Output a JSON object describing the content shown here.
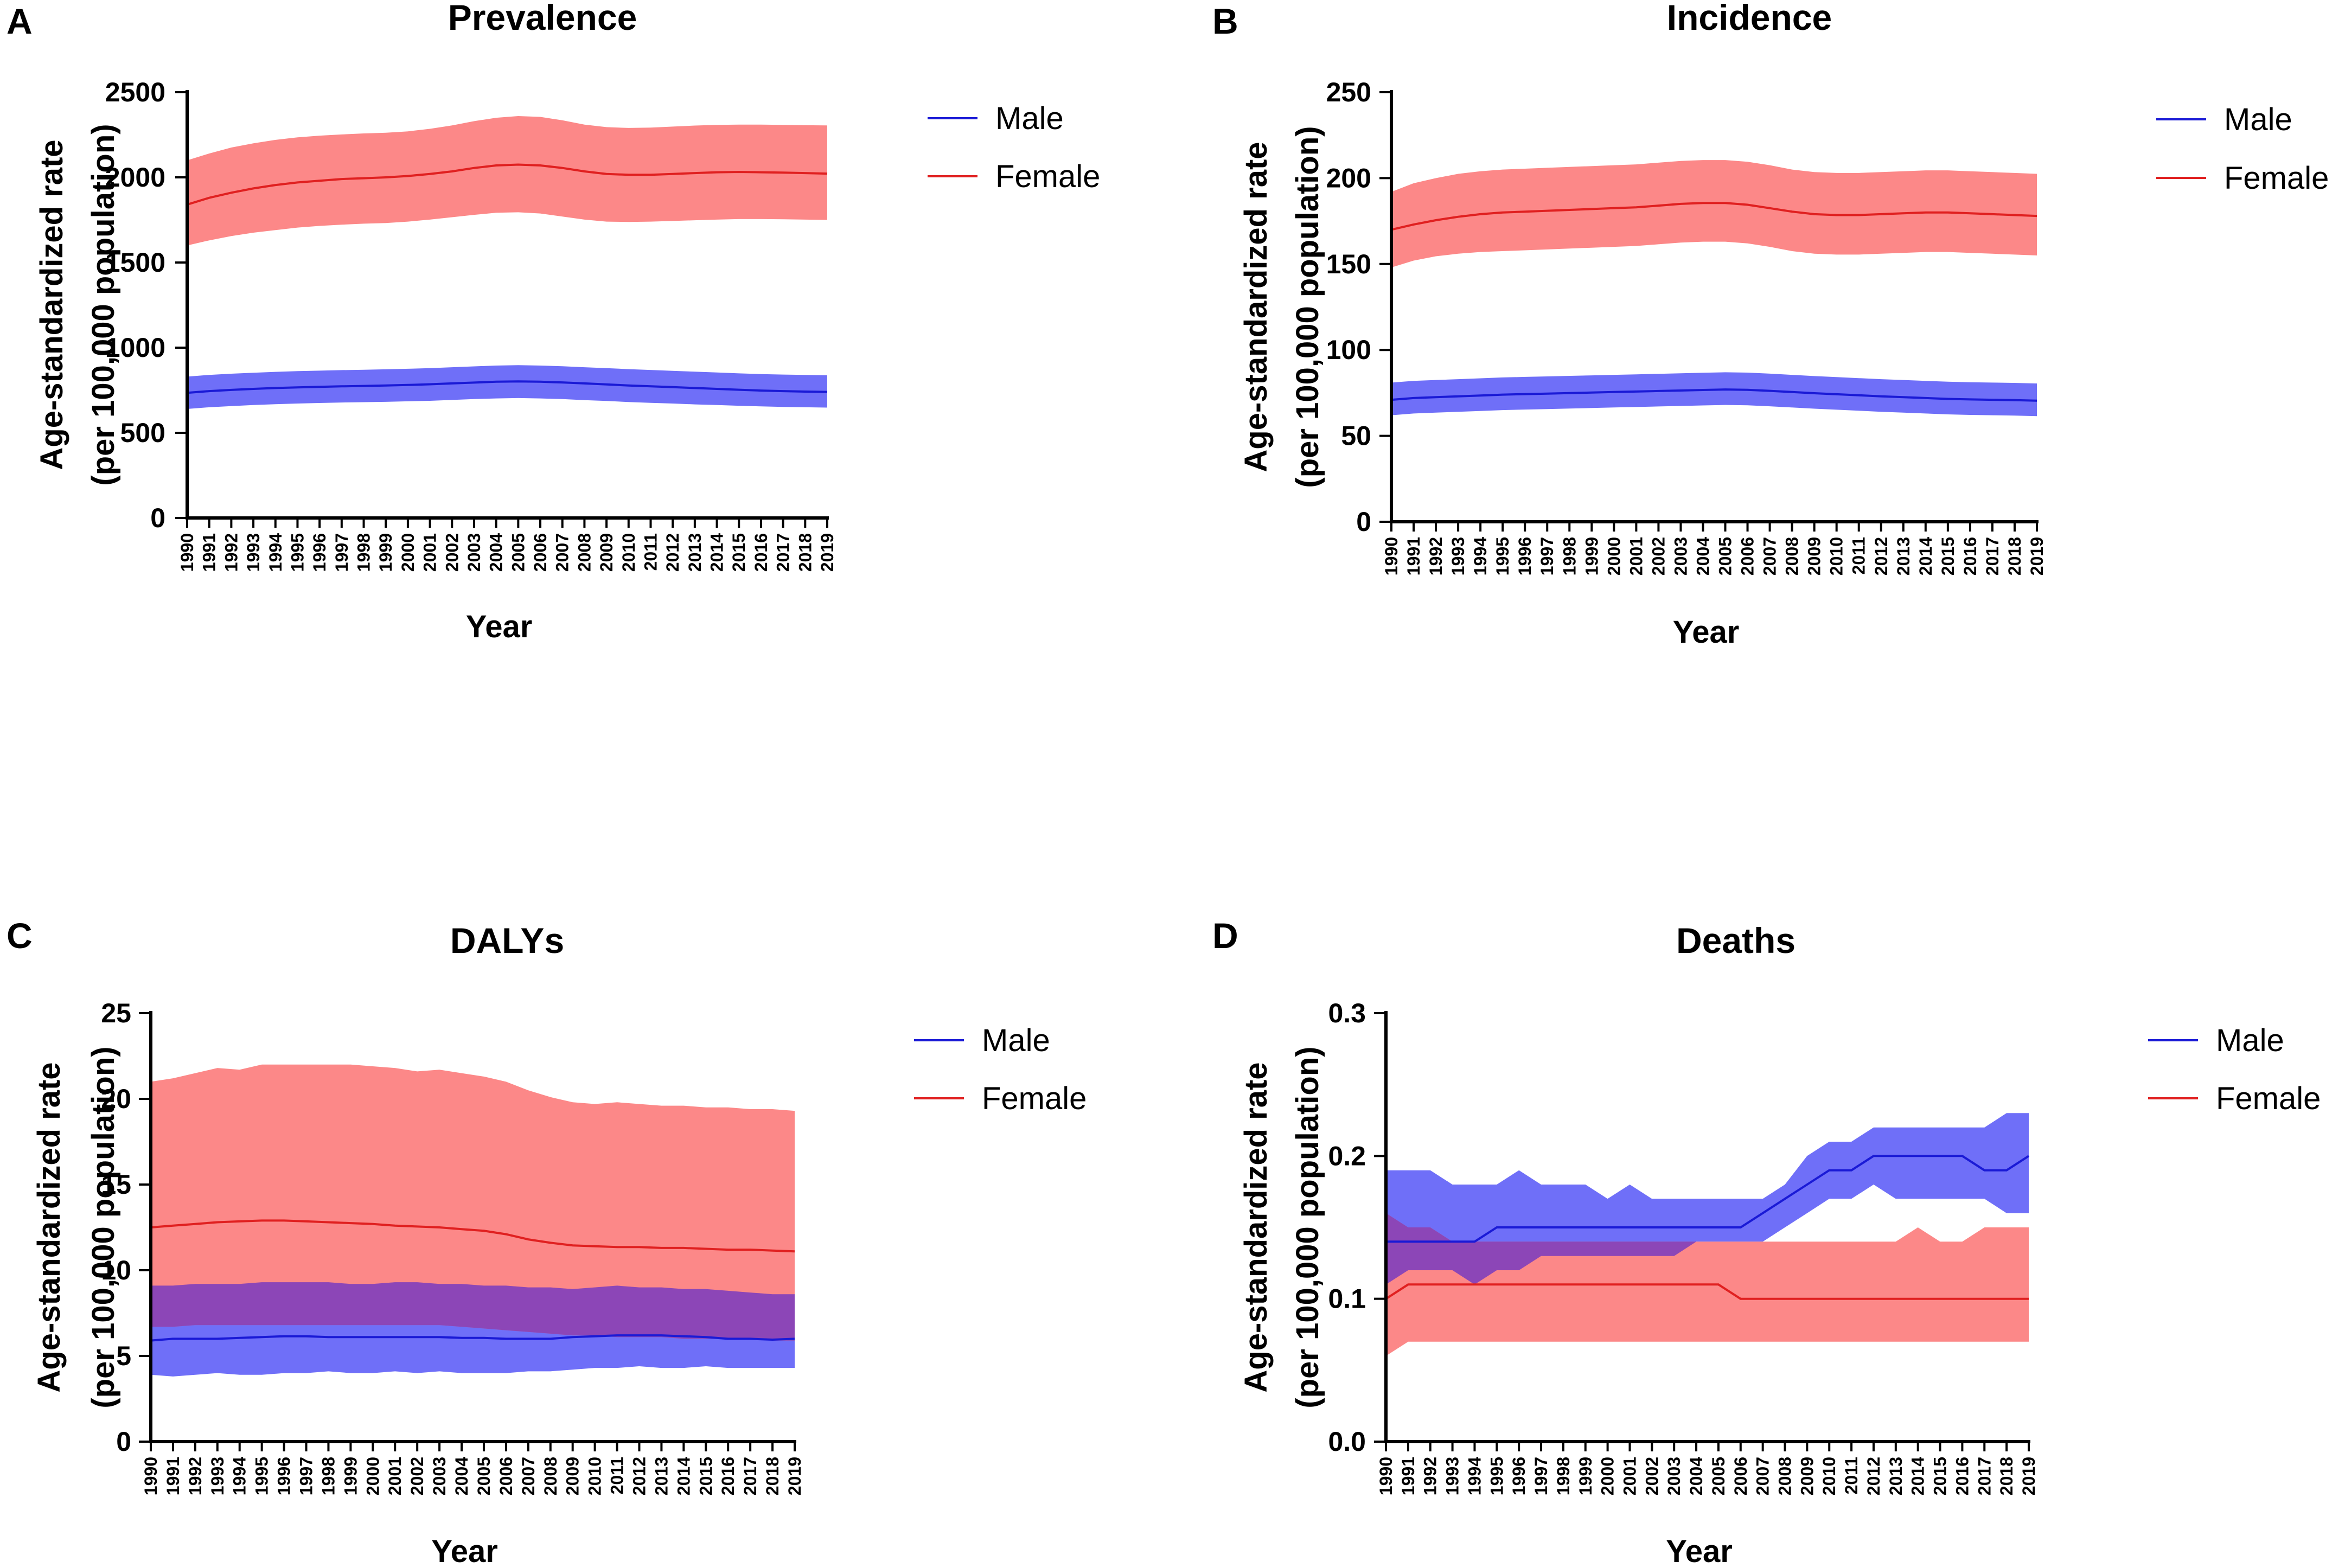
{
  "colors": {
    "male_line": "#1a1ad6",
    "male_band": "#6f6ff8",
    "female_line": "#e02020",
    "female_band": "#fb6e6e",
    "overlap_band": "#7c3fbf"
  },
  "chart_data": [
    {
      "letter": "A",
      "type": "area",
      "title": "Prevalence",
      "xlabel": "Year",
      "ylabel": [
        "Age-standardized rate",
        "(per 100,000 population)"
      ],
      "ylim": [
        0,
        2500
      ],
      "yticks": [
        0,
        500,
        1000,
        1500,
        2000,
        2500
      ],
      "ytick_labels": [
        "0",
        "500",
        "1000",
        "1500",
        "2000",
        "2500"
      ],
      "legend": [
        "Male",
        "Female"
      ],
      "x": [
        1990,
        1991,
        1992,
        1993,
        1994,
        1995,
        1996,
        1997,
        1998,
        1999,
        2000,
        2001,
        2002,
        2003,
        2004,
        2005,
        2006,
        2007,
        2008,
        2009,
        2010,
        2011,
        2012,
        2013,
        2014,
        2015,
        2016,
        2017,
        2018,
        2019
      ],
      "series": [
        {
          "name": "Male",
          "values": [
            735,
            745,
            752,
            758,
            763,
            767,
            770,
            773,
            775,
            778,
            781,
            785,
            790,
            795,
            800,
            802,
            800,
            796,
            790,
            784,
            778,
            773,
            768,
            763,
            758,
            753,
            748,
            745,
            742,
            740
          ],
          "lower": [
            640,
            650,
            657,
            663,
            668,
            672,
            675,
            678,
            680,
            682,
            685,
            688,
            693,
            698,
            702,
            704,
            702,
            698,
            692,
            687,
            681,
            676,
            672,
            667,
            663,
            659,
            655,
            652,
            650,
            648
          ],
          "upper": [
            830,
            840,
            847,
            853,
            858,
            862,
            865,
            868,
            870,
            873,
            876,
            880,
            885,
            890,
            895,
            897,
            895,
            891,
            885,
            880,
            874,
            869,
            864,
            859,
            854,
            849,
            845,
            842,
            840,
            838
          ]
        },
        {
          "name": "Female",
          "values": [
            1840,
            1880,
            1910,
            1935,
            1955,
            1970,
            1980,
            1990,
            1995,
            2000,
            2008,
            2020,
            2035,
            2055,
            2070,
            2075,
            2070,
            2055,
            2035,
            2020,
            2015,
            2015,
            2020,
            2025,
            2030,
            2032,
            2030,
            2028,
            2025,
            2022
          ],
          "lower": [
            1600,
            1630,
            1655,
            1675,
            1690,
            1705,
            1715,
            1722,
            1728,
            1732,
            1740,
            1752,
            1766,
            1780,
            1792,
            1795,
            1788,
            1770,
            1752,
            1740,
            1738,
            1740,
            1744,
            1748,
            1752,
            1755,
            1755,
            1754,
            1752,
            1750
          ],
          "upper": [
            2100,
            2140,
            2175,
            2200,
            2220,
            2235,
            2245,
            2252,
            2258,
            2262,
            2270,
            2285,
            2305,
            2330,
            2350,
            2360,
            2355,
            2335,
            2310,
            2295,
            2290,
            2292,
            2298,
            2304,
            2308,
            2310,
            2310,
            2308,
            2306,
            2305
          ]
        }
      ]
    },
    {
      "letter": "B",
      "type": "area",
      "title": "Incidence",
      "xlabel": "Year",
      "ylabel": [
        "Age-standardized rate",
        "(per 100,000 population)"
      ],
      "ylim": [
        0,
        250
      ],
      "yticks": [
        0,
        50,
        100,
        150,
        200,
        250
      ],
      "ytick_labels": [
        "0",
        "50",
        "100",
        "150",
        "200",
        "250"
      ],
      "legend": [
        "Male",
        "Female"
      ],
      "x": [
        1990,
        1991,
        1992,
        1993,
        1994,
        1995,
        1996,
        1997,
        1998,
        1999,
        2000,
        2001,
        2002,
        2003,
        2004,
        2005,
        2006,
        2007,
        2008,
        2009,
        2010,
        2011,
        2012,
        2013,
        2014,
        2015,
        2016,
        2017,
        2018,
        2019
      ],
      "series": [
        {
          "name": "Male",
          "values": [
            71,
            72,
            72.5,
            73,
            73.5,
            74,
            74.3,
            74.6,
            74.9,
            75.2,
            75.5,
            75.8,
            76.1,
            76.4,
            76.7,
            77,
            76.8,
            76.2,
            75.5,
            74.8,
            74.2,
            73.6,
            73,
            72.5,
            72,
            71.5,
            71.2,
            71,
            70.8,
            70.5
          ],
          "lower": [
            62,
            63,
            63.5,
            64,
            64.5,
            65,
            65.3,
            65.6,
            65.9,
            66.2,
            66.5,
            66.8,
            67.1,
            67.4,
            67.7,
            68,
            67.8,
            67.2,
            66.5,
            65.8,
            65.2,
            64.6,
            64,
            63.5,
            63,
            62.5,
            62.2,
            62,
            61.8,
            61.5
          ],
          "upper": [
            81,
            82,
            82.5,
            83,
            83.5,
            84,
            84.3,
            84.6,
            84.9,
            85.2,
            85.5,
            85.8,
            86.1,
            86.4,
            86.7,
            87,
            86.8,
            86.2,
            85.5,
            84.8,
            84.2,
            83.6,
            83,
            82.5,
            82,
            81.5,
            81.2,
            81,
            80.8,
            80.5
          ]
        },
        {
          "name": "Female",
          "values": [
            170,
            173,
            175.5,
            177.5,
            179,
            180,
            180.5,
            181,
            181.5,
            182,
            182.5,
            183,
            184,
            185,
            185.5,
            185.5,
            184.5,
            182.5,
            180.5,
            179,
            178.5,
            178.5,
            179,
            179.5,
            180,
            180,
            179.5,
            179,
            178.5,
            178
          ],
          "lower": [
            148,
            152,
            154.5,
            156,
            157,
            157.5,
            158,
            158.5,
            159,
            159.5,
            160,
            160.5,
            161.5,
            162.5,
            163,
            163,
            162,
            160,
            157.5,
            156,
            155.5,
            155.5,
            156,
            156.5,
            157,
            157,
            156.5,
            156,
            155.5,
            155
          ],
          "upper": [
            192,
            197,
            200,
            202.5,
            204,
            205,
            205.5,
            206,
            206.5,
            207,
            207.5,
            208,
            209,
            210,
            210.5,
            210.5,
            209.5,
            207.5,
            205,
            203.5,
            203,
            203,
            203.5,
            204,
            204.5,
            204.5,
            204,
            203.5,
            203,
            202.5
          ]
        }
      ]
    },
    {
      "letter": "C",
      "type": "area",
      "title": "DALYs",
      "xlabel": "Year",
      "ylabel": [
        "Age-standardized rate",
        "(per 100,000 population)"
      ],
      "ylim": [
        0,
        25
      ],
      "yticks": [
        0,
        5,
        10,
        15,
        20,
        25
      ],
      "ytick_labels": [
        "0",
        "5",
        "10",
        "15",
        "20",
        "25"
      ],
      "legend": [
        "Male",
        "Female"
      ],
      "x": [
        1990,
        1991,
        1992,
        1993,
        1994,
        1995,
        1996,
        1997,
        1998,
        1999,
        2000,
        2001,
        2002,
        2003,
        2004,
        2005,
        2006,
        2007,
        2008,
        2009,
        2010,
        2011,
        2012,
        2013,
        2014,
        2015,
        2016,
        2017,
        2018,
        2019
      ],
      "series": [
        {
          "name": "Male",
          "values": [
            5.9,
            6.0,
            6.0,
            6.0,
            6.05,
            6.1,
            6.15,
            6.15,
            6.1,
            6.1,
            6.1,
            6.1,
            6.1,
            6.1,
            6.05,
            6.05,
            6.0,
            6.0,
            6.0,
            6.1,
            6.15,
            6.2,
            6.2,
            6.2,
            6.15,
            6.1,
            6.0,
            6.0,
            5.95,
            6.0
          ],
          "lower": [
            3.9,
            3.8,
            3.9,
            4.0,
            3.9,
            3.9,
            4.0,
            4.0,
            4.1,
            4.0,
            4.0,
            4.1,
            4.0,
            4.1,
            4.0,
            4.0,
            4.0,
            4.1,
            4.1,
            4.2,
            4.3,
            4.3,
            4.4,
            4.3,
            4.3,
            4.4,
            4.3,
            4.3,
            4.3,
            4.3
          ],
          "upper": [
            9.1,
            9.1,
            9.2,
            9.2,
            9.2,
            9.3,
            9.3,
            9.3,
            9.3,
            9.2,
            9.2,
            9.3,
            9.3,
            9.2,
            9.2,
            9.1,
            9.1,
            9.0,
            9.0,
            8.9,
            9.0,
            9.1,
            9.0,
            9.0,
            8.9,
            8.9,
            8.8,
            8.7,
            8.6,
            8.6
          ]
        },
        {
          "name": "Female",
          "values": [
            12.5,
            12.6,
            12.7,
            12.8,
            12.85,
            12.9,
            12.9,
            12.85,
            12.8,
            12.75,
            12.7,
            12.6,
            12.55,
            12.5,
            12.4,
            12.3,
            12.1,
            11.8,
            11.6,
            11.45,
            11.4,
            11.35,
            11.35,
            11.3,
            11.3,
            11.25,
            11.2,
            11.2,
            11.15,
            11.1
          ],
          "lower": [
            6.7,
            6.7,
            6.8,
            6.8,
            6.8,
            6.8,
            6.8,
            6.8,
            6.8,
            6.8,
            6.8,
            6.8,
            6.8,
            6.8,
            6.7,
            6.6,
            6.5,
            6.4,
            6.3,
            6.2,
            6.2,
            6.1,
            6.1,
            6.1,
            6.0,
            6.0,
            6.0,
            6.0,
            5.9,
            5.9
          ],
          "upper": [
            21.0,
            21.2,
            21.5,
            21.8,
            21.7,
            22.0,
            22.0,
            22.0,
            22.0,
            22.0,
            21.9,
            21.8,
            21.6,
            21.7,
            21.5,
            21.3,
            21.0,
            20.5,
            20.1,
            19.8,
            19.7,
            19.8,
            19.7,
            19.6,
            19.6,
            19.5,
            19.5,
            19.4,
            19.4,
            19.3
          ]
        }
      ]
    },
    {
      "letter": "D",
      "type": "area",
      "title": "Deaths",
      "xlabel": "Year",
      "ylabel": [
        "Age-standardized rate",
        "(per 100,000 population)"
      ],
      "ylim": [
        0,
        0.3
      ],
      "yticks": [
        0,
        0.1,
        0.2,
        0.3
      ],
      "ytick_labels": [
        "0.0",
        "0.1",
        "0.2",
        "0.3"
      ],
      "legend": [
        "Male",
        "Female"
      ],
      "x": [
        1990,
        1991,
        1992,
        1993,
        1994,
        1995,
        1996,
        1997,
        1998,
        1999,
        2000,
        2001,
        2002,
        2003,
        2004,
        2005,
        2006,
        2007,
        2008,
        2009,
        2010,
        2011,
        2012,
        2013,
        2014,
        2015,
        2016,
        2017,
        2018,
        2019
      ],
      "series": [
        {
          "name": "Male",
          "values": [
            0.14,
            0.14,
            0.14,
            0.14,
            0.14,
            0.15,
            0.15,
            0.15,
            0.15,
            0.15,
            0.15,
            0.15,
            0.15,
            0.15,
            0.15,
            0.15,
            0.15,
            0.16,
            0.17,
            0.18,
            0.19,
            0.19,
            0.2,
            0.2,
            0.2,
            0.2,
            0.2,
            0.19,
            0.19,
            0.2
          ],
          "lower": [
            0.11,
            0.12,
            0.12,
            0.12,
            0.11,
            0.12,
            0.12,
            0.13,
            0.13,
            0.13,
            0.13,
            0.13,
            0.13,
            0.13,
            0.14,
            0.14,
            0.14,
            0.14,
            0.15,
            0.16,
            0.17,
            0.17,
            0.18,
            0.17,
            0.17,
            0.17,
            0.17,
            0.17,
            0.16,
            0.16
          ],
          "upper": [
            0.19,
            0.19,
            0.19,
            0.18,
            0.18,
            0.18,
            0.19,
            0.18,
            0.18,
            0.18,
            0.17,
            0.18,
            0.17,
            0.17,
            0.17,
            0.17,
            0.17,
            0.17,
            0.18,
            0.2,
            0.21,
            0.21,
            0.22,
            0.22,
            0.22,
            0.22,
            0.22,
            0.22,
            0.23,
            0.23
          ]
        },
        {
          "name": "Female",
          "values": [
            0.1,
            0.11,
            0.11,
            0.11,
            0.11,
            0.11,
            0.11,
            0.11,
            0.11,
            0.11,
            0.11,
            0.11,
            0.11,
            0.11,
            0.11,
            0.11,
            0.1,
            0.1,
            0.1,
            0.1,
            0.1,
            0.1,
            0.1,
            0.1,
            0.1,
            0.1,
            0.1,
            0.1,
            0.1,
            0.1
          ],
          "lower": [
            0.06,
            0.07,
            0.07,
            0.07,
            0.07,
            0.07,
            0.07,
            0.07,
            0.07,
            0.07,
            0.07,
            0.07,
            0.07,
            0.07,
            0.07,
            0.07,
            0.07,
            0.07,
            0.07,
            0.07,
            0.07,
            0.07,
            0.07,
            0.07,
            0.07,
            0.07,
            0.07,
            0.07,
            0.07,
            0.07
          ],
          "upper": [
            0.16,
            0.15,
            0.15,
            0.14,
            0.14,
            0.14,
            0.14,
            0.14,
            0.14,
            0.14,
            0.14,
            0.14,
            0.14,
            0.14,
            0.14,
            0.14,
            0.14,
            0.14,
            0.14,
            0.14,
            0.14,
            0.14,
            0.14,
            0.14,
            0.15,
            0.14,
            0.14,
            0.15,
            0.15,
            0.15
          ]
        }
      ]
    }
  ]
}
